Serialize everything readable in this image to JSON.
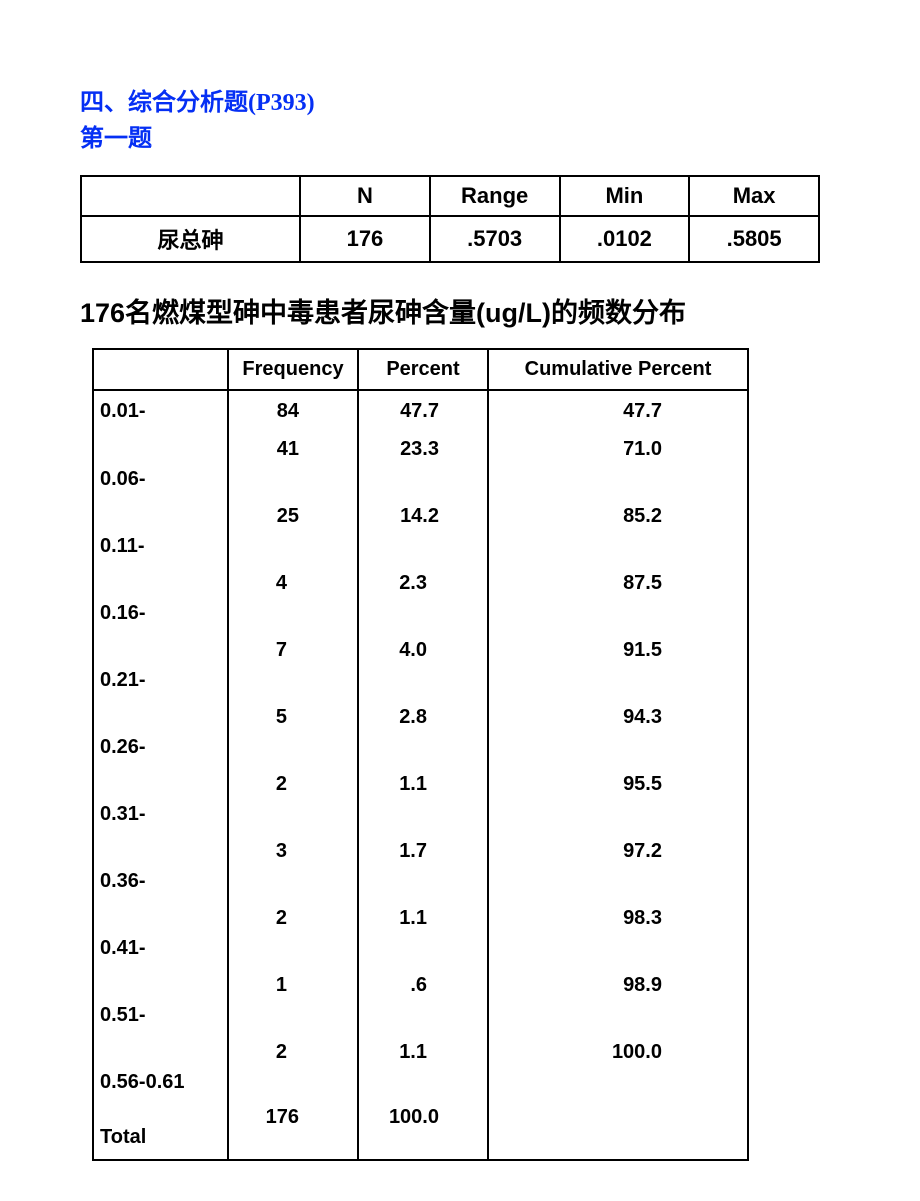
{
  "header": {
    "line1": "四、综合分析题(P393)",
    "line2": "第一题",
    "color": "#052ff4"
  },
  "summary_table": {
    "headers": [
      "",
      "N",
      "Range",
      "Min",
      "Max"
    ],
    "row_label": "尿总砷",
    "values": [
      "176",
      ".5703",
      ".0102",
      ".5805"
    ],
    "border_color": "#000000"
  },
  "main_title": "176名燃煤型砷中毒患者尿砷含量(ug/L)的频数分布",
  "frequency_table": {
    "headers": [
      "",
      "Frequency",
      "Percent",
      "Cumulative Percent"
    ],
    "rows": [
      {
        "range": "0.01-",
        "frequency": "84",
        "percent": "47.7",
        "cumulative": "47.7"
      },
      {
        "range": "0.06-",
        "frequency": "41",
        "percent": "23.3",
        "cumulative": "71.0"
      },
      {
        "range": "0.11-",
        "frequency": "25",
        "percent": "14.2",
        "cumulative": "85.2"
      },
      {
        "range": "0.16-",
        "frequency": "4",
        "percent": "2.3",
        "cumulative": "87.5"
      },
      {
        "range": "0.21-",
        "frequency": "7",
        "percent": "4.0",
        "cumulative": "91.5"
      },
      {
        "range": "0.26-",
        "frequency": "5",
        "percent": "2.8",
        "cumulative": "94.3"
      },
      {
        "range": "0.31-",
        "frequency": "2",
        "percent": "1.1",
        "cumulative": "95.5"
      },
      {
        "range": "0.36-",
        "frequency": "3",
        "percent": "1.7",
        "cumulative": "97.2"
      },
      {
        "range": "0.41-",
        "frequency": "2",
        "percent": "1.1",
        "cumulative": "98.3"
      },
      {
        "range": "0.51-",
        "frequency": "1",
        "percent": ".6",
        "cumulative": "98.9"
      },
      {
        "range": "0.56-0.61",
        "frequency": "2",
        "percent": "1.1",
        "cumulative": "100.0"
      },
      {
        "range": "Total",
        "frequency": "176",
        "percent": "100.0",
        "cumulative": ""
      }
    ],
    "border_color": "#000000",
    "background_color": "#ffffff",
    "font_size": 20,
    "header_font_size": 20
  }
}
